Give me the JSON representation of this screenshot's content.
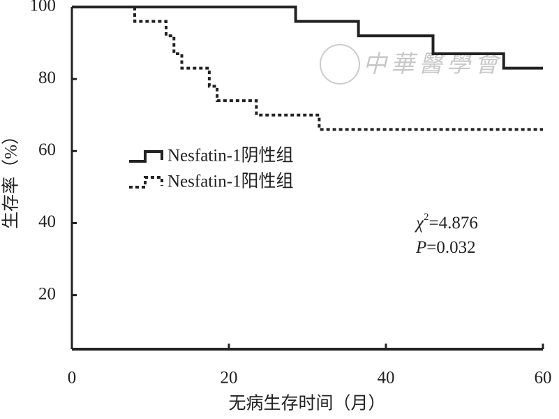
{
  "chart_data": {
    "type": "step-line",
    "x_label": "无病生存时间（月）",
    "y_label": "生存率（%）",
    "xlim": [
      0,
      60
    ],
    "xticks": [
      0,
      20,
      40,
      60
    ],
    "ylim": [
      5,
      100
    ],
    "yticks": [
      20,
      40,
      60,
      80,
      100
    ],
    "series": [
      {
        "name": "Nesfatin-1阴性组",
        "color": "#222222",
        "style": "solid",
        "x": [
          0,
          28.5,
          28.5,
          36.5,
          36.5,
          46,
          46,
          55,
          55,
          60
        ],
        "values": [
          100,
          100,
          96,
          96,
          92,
          92,
          87,
          87,
          83,
          83
        ]
      },
      {
        "name": "Nesfatin-1阳性组",
        "color": "#222222",
        "style": "dotted",
        "x": [
          8,
          8,
          12,
          12,
          13,
          13,
          14,
          14,
          17.5,
          17.5,
          18.5,
          18.5,
          23.5,
          23.5,
          31.5,
          31.5,
          60
        ],
        "values": [
          100,
          96,
          96,
          92,
          92,
          87,
          87,
          83,
          83,
          78,
          78,
          74,
          74,
          70,
          70,
          66,
          66
        ]
      }
    ],
    "annotations": {
      "chi_symbol": "χ",
      "chi_power": "2",
      "chi_value": "=4.876",
      "p_symbol": "P",
      "p_value": "=0.032"
    },
    "watermark": "中華醫學會"
  }
}
